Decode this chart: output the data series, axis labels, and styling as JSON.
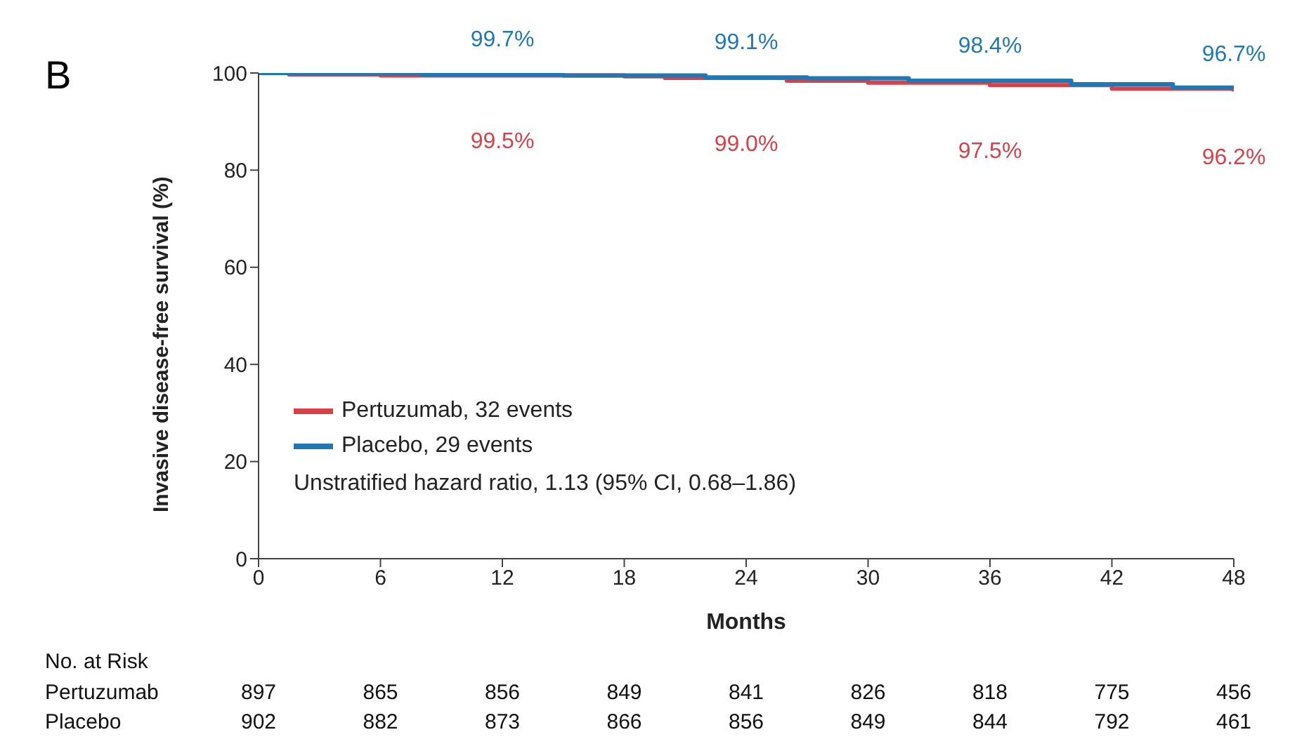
{
  "chart_data": {
    "type": "step",
    "title": "B",
    "xlabel": "Months",
    "ylabel": "Invasive disease-free survival (%)",
    "xlim": [
      0,
      48
    ],
    "xticks": [
      0,
      6,
      12,
      18,
      24,
      30,
      36,
      42,
      48
    ],
    "ylim": [
      0,
      100
    ],
    "yticks": [
      0,
      20,
      40,
      60,
      80,
      100
    ],
    "legend": "bottom left",
    "marker": "none",
    "line_style": "solid",
    "series": [
      {
        "name": "Pertuzumab, 32 events",
        "color": "#d6414a",
        "x": [
          0,
          1.5,
          6,
          12,
          18,
          20,
          24,
          26,
          30,
          36,
          42,
          48
        ],
        "values": [
          100,
          99.7,
          99.5,
          99.5,
          99.3,
          99.0,
          99.0,
          98.4,
          98.0,
          97.5,
          96.8,
          96.2
        ],
        "value_labels": [
          null,
          null,
          null,
          "99.5%",
          null,
          null,
          "99.0%",
          null,
          null,
          "97.5%",
          null,
          "96.2%"
        ]
      },
      {
        "name": "Placebo, 29 events",
        "color": "#1f77b4",
        "x": [
          0,
          2,
          8,
          12,
          15,
          22,
          24,
          27,
          32,
          36,
          40,
          45,
          48
        ],
        "values": [
          100,
          99.9,
          99.7,
          99.7,
          99.5,
          99.1,
          99.1,
          98.9,
          98.4,
          98.4,
          97.7,
          97.0,
          96.7
        ],
        "value_labels": [
          null,
          null,
          null,
          "99.7%",
          null,
          null,
          "99.1%",
          null,
          null,
          "98.4%",
          null,
          null,
          "96.7%"
        ]
      }
    ],
    "annotations": [
      "Unstratified hazard ratio, 1.13 (95% CI, 0.68–1.86)",
      "No. at Risk",
      "Pertuzumab",
      "897",
      "865",
      "856",
      "849",
      "841",
      "826",
      "818",
      "775",
      "456",
      "Placebo",
      "902",
      "882",
      "873",
      "866",
      "856",
      "849",
      "844",
      "792",
      "461"
    ]
  }
}
